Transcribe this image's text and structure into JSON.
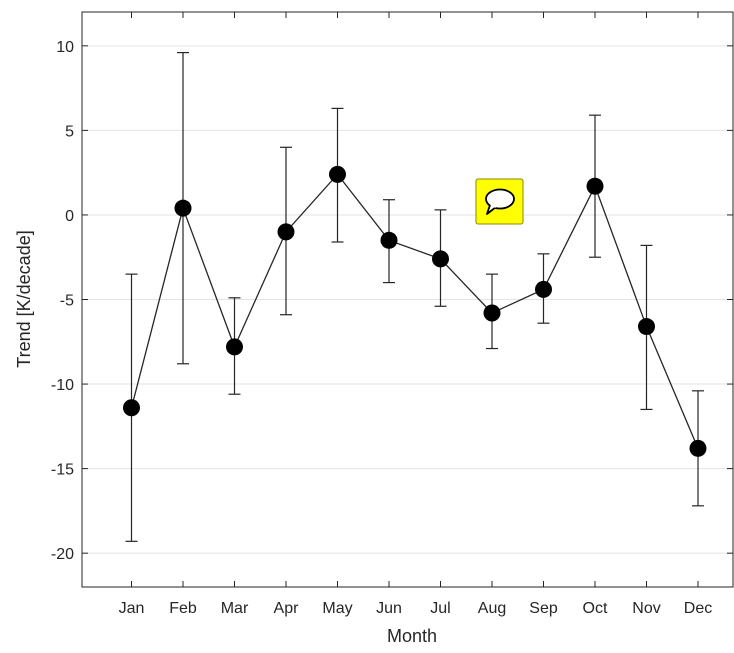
{
  "chart_data": {
    "type": "line",
    "xlabel": "Month",
    "ylabel": "Trend [K/decade]",
    "categories": [
      "Jan",
      "Feb",
      "Mar",
      "Apr",
      "May",
      "Jun",
      "Jul",
      "Aug",
      "Sep",
      "Oct",
      "Nov",
      "Dec"
    ],
    "series": [
      {
        "values": [
          -11.4,
          0.4,
          -7.8,
          -1.0,
          2.4,
          -1.5,
          -2.6,
          -5.8,
          -4.4,
          1.7,
          -6.6,
          -13.8
        ],
        "error_low": [
          -19.3,
          -8.8,
          -10.6,
          -5.9,
          -1.6,
          -4.0,
          -5.4,
          -7.9,
          -6.4,
          -2.5,
          -11.5,
          -17.2
        ],
        "error_high": [
          -3.5,
          9.6,
          -4.9,
          4.0,
          6.3,
          0.9,
          0.3,
          -3.5,
          -2.3,
          5.9,
          -1.8,
          -10.4
        ]
      }
    ],
    "ylim": [
      -22,
      12
    ],
    "yticks": [
      10,
      5,
      0,
      -5,
      -10,
      -15,
      -20
    ],
    "ytick_labels": [
      "10",
      "5",
      "0",
      "-5",
      "-10",
      "-15",
      "-20"
    ],
    "grid": "horizontal",
    "colors": {
      "line": "#262626",
      "marker": "#000000",
      "grid": "#e3e3e3",
      "axis": "#262626"
    }
  },
  "annotation_button": {
    "icon": "speech-bubble-icon",
    "background": "#ffff00"
  }
}
